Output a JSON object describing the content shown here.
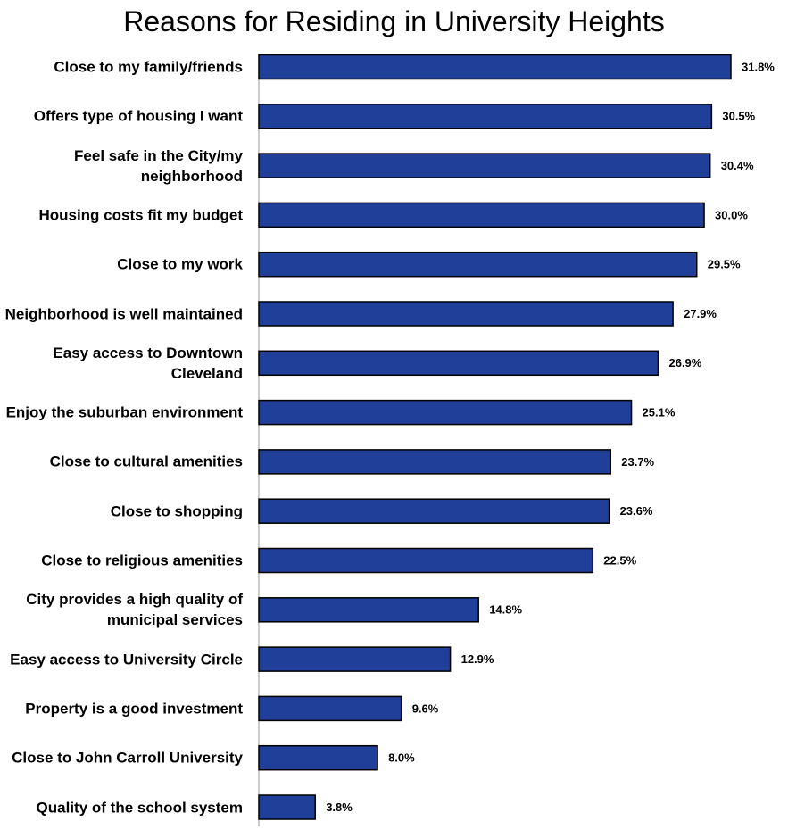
{
  "chart_data": {
    "type": "bar",
    "orientation": "horizontal",
    "title": "Reasons for Residing in University Heights",
    "categories": [
      "Close to my family/friends",
      "Offers type of housing I want",
      "Feel safe in the City/my neighborhood",
      "Housing costs fit my budget",
      "Close to my work",
      "Neighborhood is well maintained",
      "Easy access to Downtown Cleveland",
      "Enjoy the suburban environment",
      "Close to cultural amenities",
      "Close to shopping",
      "Close to religious amenities",
      "City provides a high quality of municipal services",
      "Easy access to University Circle",
      "Property is a good investment",
      "Close to John Carroll University",
      "Quality of the school system"
    ],
    "values": [
      31.8,
      30.5,
      30.4,
      30.0,
      29.5,
      27.9,
      26.9,
      25.1,
      23.7,
      23.6,
      22.5,
      14.8,
      12.9,
      9.6,
      8.0,
      3.8
    ],
    "value_labels": [
      "31.8%",
      "30.5%",
      "30.4%",
      "30.0%",
      "29.5%",
      "27.9%",
      "26.9%",
      "25.1%",
      "23.7%",
      "23.6%",
      "22.5%",
      "14.8%",
      "12.9%",
      "9.6%",
      "8.0%",
      "3.8%"
    ],
    "color": "#1f3f99"
  }
}
